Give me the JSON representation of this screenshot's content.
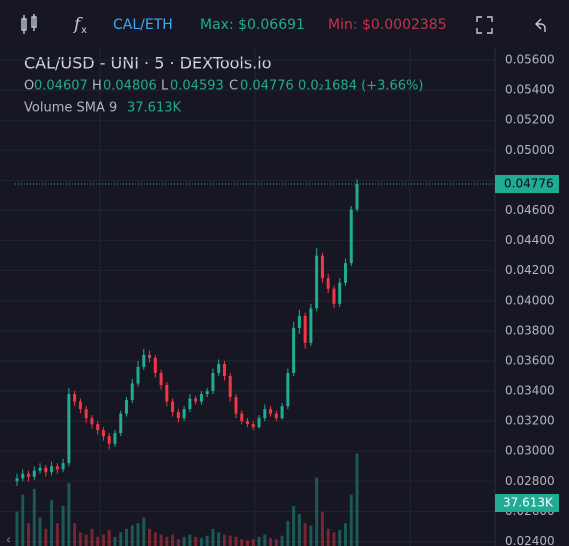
{
  "header": {
    "pair": "CAL/ETH",
    "max": "Max: $0.06691",
    "min": "Min: $0.0002385"
  },
  "chart_data": {
    "type": "candlestick",
    "title": "CAL/USD - UNI · 5 · DEXTools.io",
    "ohlc_labels": {
      "o": "O",
      "h": "H",
      "l": "L",
      "c": "C"
    },
    "change": "0.0₂1684 (+3.66%)",
    "volume_label": "Volume SMA 9",
    "volume_sma": "37.613K",
    "up_color": "#22ab94",
    "down_color": "#f23645",
    "ylim": [
      0.0237,
      0.0568
    ],
    "yticks": [
      {
        "value": 0.056,
        "label": "0.05600"
      },
      {
        "value": 0.054,
        "label": "0.05400"
      },
      {
        "value": 0.052,
        "label": "0.05200"
      },
      {
        "value": 0.05,
        "label": "0.05000"
      },
      {
        "value": 0.048,
        "label": "0.04800"
      },
      {
        "value": 0.046,
        "label": "0.04600"
      },
      {
        "value": 0.044,
        "label": "0.04400"
      },
      {
        "value": 0.042,
        "label": "0.04200"
      },
      {
        "value": 0.04,
        "label": "0.04000"
      },
      {
        "value": 0.038,
        "label": "0.03800"
      },
      {
        "value": 0.036,
        "label": "0.03600"
      },
      {
        "value": 0.034,
        "label": "0.03400"
      },
      {
        "value": 0.032,
        "label": "0.03200"
      },
      {
        "value": 0.03,
        "label": "0.03000"
      },
      {
        "value": 0.028,
        "label": "0.02800"
      },
      {
        "value": 0.026,
        "label": "0.02600"
      },
      {
        "value": 0.024,
        "label": "0.02400"
      }
    ],
    "open": [
      0.028,
      0.0282,
      0.0285,
      0.0283,
      0.0287,
      0.0289,
      0.0286,
      0.029,
      0.0288,
      0.0292,
      0.0338,
      0.0333,
      0.0328,
      0.0322,
      0.0318,
      0.0314,
      0.031,
      0.0305,
      0.0312,
      0.0325,
      0.0334,
      0.0345,
      0.0356,
      0.0364,
      0.0362,
      0.0352,
      0.0344,
      0.0333,
      0.0326,
      0.0322,
      0.0328,
      0.0335,
      0.0333,
      0.0338,
      0.034,
      0.0352,
      0.0358,
      0.035,
      0.0336,
      0.0325,
      0.032,
      0.0318,
      0.0316,
      0.0322,
      0.0328,
      0.0325,
      0.0322,
      0.033,
      0.0352,
      0.0382,
      0.039,
      0.0372,
      0.0395,
      0.043,
      0.0415,
      0.0408,
      0.0398,
      0.0412,
      0.0425,
      0.04607
    ],
    "high": [
      0.0285,
      0.0288,
      0.0287,
      0.029,
      0.0292,
      0.0291,
      0.0293,
      0.0292,
      0.0295,
      0.0342,
      0.034,
      0.0335,
      0.033,
      0.0324,
      0.032,
      0.0316,
      0.0312,
      0.0314,
      0.0327,
      0.0336,
      0.0348,
      0.036,
      0.0368,
      0.0367,
      0.0364,
      0.0354,
      0.0346,
      0.0335,
      0.0328,
      0.033,
      0.0338,
      0.0337,
      0.034,
      0.0342,
      0.0355,
      0.0361,
      0.036,
      0.0352,
      0.0338,
      0.0327,
      0.0322,
      0.032,
      0.0324,
      0.0331,
      0.033,
      0.0327,
      0.0332,
      0.0355,
      0.0386,
      0.0394,
      0.0392,
      0.0398,
      0.0435,
      0.0432,
      0.0418,
      0.041,
      0.0415,
      0.0428,
      0.0463,
      0.04806
    ],
    "low": [
      0.0277,
      0.028,
      0.028,
      0.0281,
      0.0285,
      0.0283,
      0.0284,
      0.0285,
      0.0286,
      0.029,
      0.033,
      0.0325,
      0.0319,
      0.0315,
      0.0311,
      0.0307,
      0.0301,
      0.0303,
      0.031,
      0.0323,
      0.0332,
      0.0343,
      0.0354,
      0.0359,
      0.0349,
      0.0341,
      0.033,
      0.0323,
      0.0319,
      0.032,
      0.0326,
      0.0331,
      0.0331,
      0.0336,
      0.0338,
      0.035,
      0.0347,
      0.0333,
      0.0322,
      0.0318,
      0.0316,
      0.0314,
      0.0315,
      0.032,
      0.0323,
      0.032,
      0.0321,
      0.0328,
      0.035,
      0.0378,
      0.0368,
      0.037,
      0.0393,
      0.0412,
      0.0405,
      0.0395,
      0.0396,
      0.041,
      0.0423,
      0.04593
    ],
    "close": [
      0.0282,
      0.0285,
      0.0283,
      0.0287,
      0.0289,
      0.0286,
      0.029,
      0.0288,
      0.0292,
      0.0338,
      0.0333,
      0.0328,
      0.0322,
      0.0318,
      0.0314,
      0.031,
      0.0305,
      0.0312,
      0.0325,
      0.0334,
      0.0345,
      0.0356,
      0.0364,
      0.0362,
      0.0352,
      0.0344,
      0.0333,
      0.0326,
      0.0322,
      0.0328,
      0.0335,
      0.0333,
      0.0338,
      0.034,
      0.0352,
      0.0358,
      0.035,
      0.0336,
      0.0325,
      0.032,
      0.0318,
      0.0316,
      0.0322,
      0.0328,
      0.0325,
      0.0322,
      0.033,
      0.0352,
      0.0382,
      0.039,
      0.0372,
      0.0395,
      0.043,
      0.0415,
      0.0408,
      0.0398,
      0.0412,
      0.0425,
      0.04607,
      0.04776
    ],
    "volume": [
      30,
      45,
      20,
      50,
      25,
      15,
      40,
      20,
      35,
      55,
      20,
      12,
      10,
      15,
      8,
      10,
      14,
      8,
      12,
      15,
      18,
      20,
      25,
      15,
      12,
      10,
      8,
      10,
      6,
      8,
      10,
      8,
      7,
      9,
      15,
      12,
      10,
      9,
      8,
      6,
      5,
      6,
      8,
      10,
      7,
      6,
      9,
      22,
      35,
      28,
      20,
      18,
      60,
      30,
      15,
      12,
      14,
      20,
      45,
      81
    ],
    "volume_ylim": [
      0,
      436
    ]
  }
}
